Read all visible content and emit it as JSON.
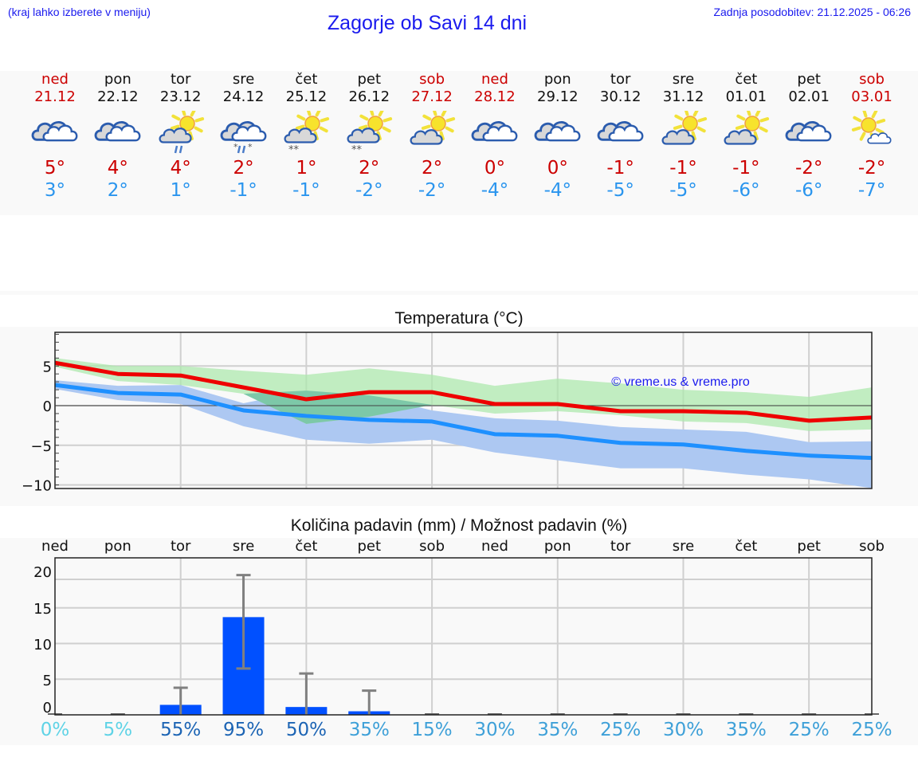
{
  "header": {
    "hint": "(kraj lahko izberete v meniju)",
    "title": "Zagorje ob Savi 14 dni",
    "updated": "Zadnja posodobitev: 21.12.2025 - 06:26"
  },
  "days": [
    {
      "name": "ned",
      "date": "21.12",
      "weekend": true,
      "icon": "cloudy-icon",
      "max": "5°",
      "min": "3°"
    },
    {
      "name": "pon",
      "date": "22.12",
      "weekend": false,
      "icon": "cloudy-icon",
      "max": "4°",
      "min": "2°"
    },
    {
      "name": "tor",
      "date": "23.12",
      "weekend": false,
      "icon": "partly-sunny-rain-icon",
      "max": "4°",
      "min": "1°"
    },
    {
      "name": "sre",
      "date": "24.12",
      "weekend": false,
      "icon": "cloudy-sleet-icon",
      "max": "2°",
      "min": "-1°"
    },
    {
      "name": "čet",
      "date": "25.12",
      "weekend": false,
      "icon": "partly-sunny-snow-icon",
      "max": "1°",
      "min": "-1°"
    },
    {
      "name": "pet",
      "date": "26.12",
      "weekend": false,
      "icon": "partly-sunny-snow-icon",
      "max": "2°",
      "min": "-2°"
    },
    {
      "name": "sob",
      "date": "27.12",
      "weekend": true,
      "icon": "partly-sunny-icon",
      "max": "2°",
      "min": "-2°"
    },
    {
      "name": "ned",
      "date": "28.12",
      "weekend": true,
      "icon": "cloudy-icon",
      "max": "0°",
      "min": "-4°"
    },
    {
      "name": "pon",
      "date": "29.12",
      "weekend": false,
      "icon": "cloudy-icon",
      "max": "0°",
      "min": "-4°"
    },
    {
      "name": "tor",
      "date": "30.12",
      "weekend": false,
      "icon": "cloudy-icon",
      "max": "-1°",
      "min": "-5°"
    },
    {
      "name": "sre",
      "date": "31.12",
      "weekend": false,
      "icon": "partly-sunny-icon",
      "max": "-1°",
      "min": "-5°"
    },
    {
      "name": "čet",
      "date": "01.01",
      "weekend": false,
      "icon": "partly-sunny-icon",
      "max": "-1°",
      "min": "-6°"
    },
    {
      "name": "pet",
      "date": "02.01",
      "weekend": false,
      "icon": "cloudy-icon",
      "max": "-2°",
      "min": "-6°"
    },
    {
      "name": "sob",
      "date": "03.01",
      "weekend": true,
      "icon": "mostly-sunny-icon",
      "max": "-2°",
      "min": "-7°"
    }
  ],
  "colors": {
    "max_line": "#ee0000",
    "min_line": "#1e90ff",
    "max_band": "#aee8ae",
    "min_band": "#adc8f2",
    "overlap_band": "#7dc8a8",
    "precip_bar": "#0050ff",
    "error_bar": "#808080",
    "title_blue": "#1a1aee",
    "weekend_red": "#cc0000",
    "min_temp_blue": "#2a95ee"
  },
  "temperature_chart": {
    "title": "Temperatura (°C)",
    "watermark": "© vreme.us & vreme.pro",
    "y_ticks": [
      "5",
      "0",
      "−5",
      "−10"
    ]
  },
  "precip_chart": {
    "title": "Količina padavin (mm) / Možnost padavin (%)",
    "day_labels": [
      "ned",
      "pon",
      "tor",
      "sre",
      "čet",
      "pet",
      "sob",
      "ned",
      "pon",
      "tor",
      "sre",
      "čet",
      "pet",
      "sob"
    ],
    "y_ticks": [
      "20",
      "15",
      "10",
      "5",
      "0"
    ],
    "probabilities": [
      "0%",
      "5%",
      "55%",
      "95%",
      "50%",
      "35%",
      "15%",
      "30%",
      "35%",
      "25%",
      "30%",
      "35%",
      "25%",
      "25%"
    ],
    "prob_colors": [
      "#5fd3e6",
      "#5fd3e6",
      "#1c64b4",
      "#1c64b4",
      "#1c64b4",
      "#3ea0d8",
      "#3ea0d8",
      "#3ea0d8",
      "#3ea0d8",
      "#3ea0d8",
      "#3ea0d8",
      "#3ea0d8",
      "#3ea0d8",
      "#3ea0d8"
    ]
  },
  "chart_data": [
    {
      "type": "line",
      "title": "Temperatura (°C)",
      "xlabel": "",
      "ylabel": "°C",
      "categories": [
        "21.12",
        "22.12",
        "23.12",
        "24.12",
        "25.12",
        "26.12",
        "27.12",
        "28.12",
        "29.12",
        "30.12",
        "31.12",
        "01.01",
        "02.01",
        "03.01"
      ],
      "ylim": [
        -10.5,
        9.2
      ],
      "grid": true,
      "series": [
        {
          "name": "Max temperature",
          "values": [
            5.4,
            4.0,
            3.8,
            2.3,
            0.8,
            1.7,
            1.7,
            0.2,
            0.2,
            -0.7,
            -0.7,
            -0.9,
            -1.9,
            -1.5
          ]
        },
        {
          "name": "Min temperature",
          "values": [
            2.6,
            1.6,
            1.4,
            -0.6,
            -1.3,
            -1.8,
            -2.0,
            -3.6,
            -3.8,
            -4.7,
            -4.9,
            -5.7,
            -6.3,
            -6.6
          ]
        },
        {
          "name": "Max range upper",
          "values": [
            6.0,
            5.0,
            5.0,
            4.4,
            3.9,
            4.7,
            3.9,
            2.5,
            3.4,
            2.8,
            2.0,
            1.7,
            1.1,
            2.3
          ]
        },
        {
          "name": "Max range lower",
          "values": [
            4.9,
            3.1,
            2.6,
            1.5,
            -2.3,
            -1.4,
            0.1,
            -1.0,
            -0.7,
            -1.2,
            -2.0,
            -2.2,
            -3.2,
            -3.0
          ]
        },
        {
          "name": "Min range upper",
          "values": [
            3.2,
            2.5,
            2.6,
            0.3,
            1.9,
            1.3,
            -0.6,
            -1.6,
            -1.9,
            -2.7,
            -3.0,
            -3.3,
            -4.6,
            -4.5
          ]
        },
        {
          "name": "Min range lower",
          "values": [
            2.1,
            0.7,
            0.2,
            -2.6,
            -4.3,
            -4.8,
            -4.3,
            -5.9,
            -6.9,
            -7.9,
            -7.9,
            -8.7,
            -9.3,
            -10.4
          ]
        }
      ],
      "annotations": [
        "© vreme.us & vreme.pro"
      ]
    },
    {
      "type": "bar",
      "title": "Količina padavin (mm) / Možnost padavin (%)",
      "xlabel": "",
      "ylabel": "mm",
      "categories": [
        "ned",
        "pon",
        "tor",
        "sre",
        "čet",
        "pet",
        "sob",
        "ned",
        "pon",
        "tor",
        "sre",
        "čet",
        "pet",
        "sob"
      ],
      "ylim": [
        0,
        20.5
      ],
      "grid": true,
      "series": [
        {
          "name": "Precipitation (mm)",
          "values": [
            0,
            0,
            1.4,
            13.7,
            1.1,
            0.5,
            0,
            0,
            0,
            0,
            0,
            0,
            0,
            0
          ]
        },
        {
          "name": "Error upper (mm)",
          "values": [
            0,
            0,
            3.8,
            19.6,
            5.8,
            3.4,
            0,
            0,
            0,
            0,
            0,
            0,
            0,
            0
          ]
        },
        {
          "name": "Error lower (mm)",
          "values": [
            0,
            0,
            0,
            6.5,
            0,
            0,
            0,
            0,
            0,
            0,
            0,
            0,
            0,
            0
          ]
        },
        {
          "name": "Probability (%)",
          "values": [
            0,
            5,
            55,
            95,
            50,
            35,
            15,
            30,
            35,
            25,
            30,
            35,
            25,
            25
          ]
        }
      ]
    }
  ]
}
